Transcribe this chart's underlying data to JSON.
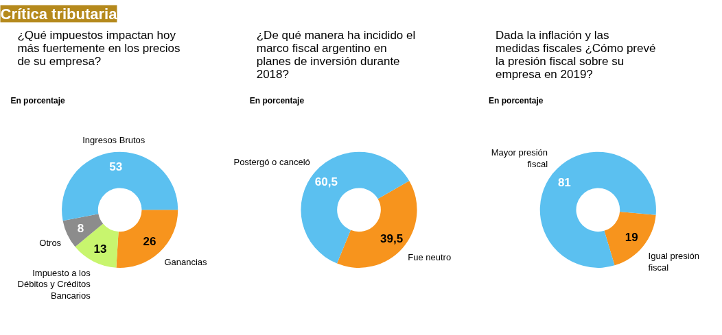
{
  "chart_data": [
    {
      "type": "donut",
      "title": "¿Qué impuestos impactan hoy más fuertemente en los precios de su empresa?",
      "subtitle": "En porcentaje",
      "annotations": [
        "Crítica tributaria"
      ],
      "categories": [
        "Ganancias",
        "Impuesto a los Débitos y Créditos Bancarios",
        "Otros",
        "Ingresos Brutos"
      ],
      "values": [
        26,
        13,
        8,
        53
      ],
      "colors": [
        "#f7941d",
        "#c8f56e",
        "#8c8c8c",
        "#5bc0f0"
      ],
      "value_labels": [
        "26",
        "13",
        "8",
        "53"
      ]
    },
    {
      "type": "donut",
      "title": "¿De qué manera ha incidido el marco fiscal argentino en planes de inversión durante 2018?",
      "subtitle": "En porcentaje",
      "categories": [
        "Fue neutro",
        "Postergó o canceló"
      ],
      "values": [
        39.5,
        60.5
      ],
      "colors": [
        "#f7941d",
        "#5bc0f0"
      ],
      "value_labels": [
        "39,5",
        "60,5"
      ]
    },
    {
      "type": "donut",
      "title": "Dada la inflación y las medidas fiscales ¿Cómo prevé la presión fiscal sobre su empresa en 2019?",
      "subtitle": "En porcentaje",
      "categories": [
        "Igual presión fiscal",
        "Mayor presión fiscal"
      ],
      "values": [
        19,
        81
      ],
      "colors": [
        "#f7941d",
        "#5bc0f0"
      ],
      "value_labels": [
        "19",
        "81"
      ]
    }
  ]
}
